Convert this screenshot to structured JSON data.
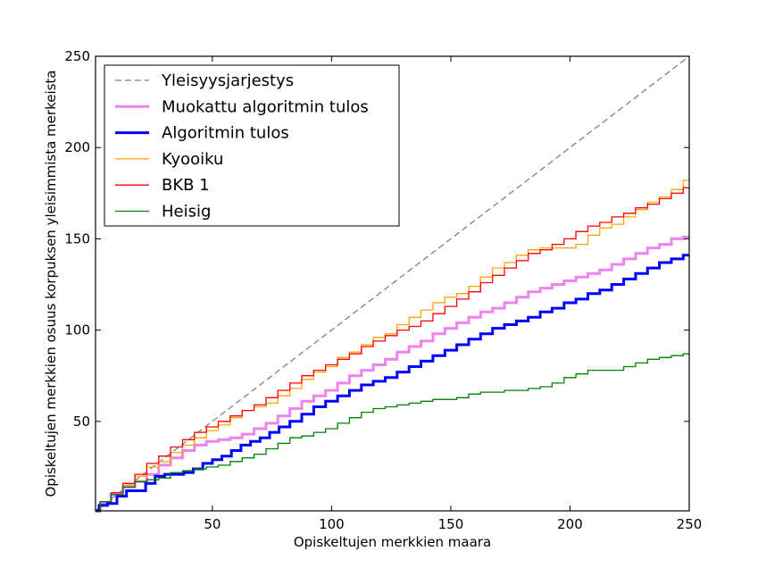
{
  "chart_data": {
    "type": "line",
    "title": "",
    "xlabel": "Opiskeltujen merkkien maara",
    "ylabel": "Opiskeltujen merkkien osuus korpuksen yleisimmista merkeista",
    "xlim": [
      1,
      250
    ],
    "ylim": [
      1,
      250
    ],
    "xticks": [
      50,
      100,
      150,
      200,
      250
    ],
    "yticks": [
      50,
      100,
      150,
      200,
      250
    ],
    "xtick_labels": [
      "50",
      "100",
      "150",
      "200",
      "250"
    ],
    "ytick_labels": [
      "50",
      "100",
      "150",
      "200",
      "250"
    ],
    "grid": false,
    "legend_position": "top-left",
    "series": [
      {
        "name": "Yleisyysjarjestys",
        "color": "#808080",
        "style": "dashed",
        "width": 1.3,
        "step": false,
        "x": [
          1,
          250
        ],
        "y": [
          1,
          250
        ]
      },
      {
        "name": "Muokattu algoritmin tulos",
        "color": "#ee82ee",
        "style": "solid",
        "width": 3,
        "step": true,
        "x": [
          1,
          5,
          10,
          15,
          20,
          25,
          30,
          35,
          40,
          45,
          50,
          55,
          60,
          65,
          70,
          75,
          80,
          85,
          90,
          95,
          100,
          105,
          110,
          115,
          120,
          125,
          130,
          135,
          140,
          145,
          150,
          155,
          160,
          165,
          170,
          175,
          180,
          185,
          190,
          195,
          200,
          205,
          210,
          215,
          220,
          225,
          230,
          235,
          240,
          245,
          250
        ],
        "y": [
          1,
          5,
          10,
          14,
          17,
          21,
          26,
          30,
          34,
          37,
          39,
          40,
          41,
          43,
          46,
          49,
          53,
          57,
          61,
          64,
          67,
          71,
          75,
          78,
          81,
          84,
          88,
          91,
          94,
          98,
          101,
          104,
          107,
          110,
          112,
          115,
          118,
          121,
          123,
          125,
          127,
          129,
          131,
          133,
          136,
          139,
          142,
          145,
          147,
          150,
          151
        ]
      },
      {
        "name": "Algoritmin tulos",
        "color": "#0000ff",
        "style": "solid",
        "width": 3,
        "step": true,
        "x": [
          1,
          4,
          8,
          12,
          16,
          20,
          24,
          28,
          32,
          36,
          40,
          44,
          48,
          52,
          56,
          60,
          64,
          68,
          72,
          76,
          80,
          85,
          90,
          95,
          100,
          105,
          110,
          115,
          120,
          125,
          130,
          135,
          140,
          145,
          150,
          155,
          160,
          165,
          170,
          175,
          180,
          185,
          190,
          195,
          200,
          205,
          210,
          215,
          220,
          225,
          230,
          235,
          240,
          245,
          250
        ],
        "y": [
          1,
          4,
          5,
          9,
          12,
          12,
          16,
          20,
          21,
          21,
          22,
          24,
          27,
          29,
          31,
          34,
          37,
          39,
          41,
          44,
          47,
          50,
          54,
          58,
          61,
          64,
          67,
          70,
          72,
          74,
          77,
          80,
          83,
          86,
          89,
          92,
          95,
          98,
          101,
          103,
          105,
          107,
          110,
          112,
          115,
          117,
          120,
          122,
          125,
          128,
          131,
          134,
          137,
          139,
          141
        ]
      },
      {
        "name": "Kyooiku",
        "color": "#ffa500",
        "style": "solid",
        "width": 1.3,
        "step": true,
        "x": [
          1,
          5,
          10,
          15,
          20,
          25,
          30,
          35,
          40,
          45,
          50,
          55,
          60,
          65,
          70,
          75,
          80,
          85,
          90,
          95,
          100,
          105,
          110,
          115,
          120,
          125,
          130,
          135,
          140,
          145,
          150,
          155,
          160,
          165,
          170,
          175,
          180,
          185,
          190,
          195,
          200,
          205,
          210,
          215,
          220,
          225,
          230,
          235,
          240,
          245,
          250
        ],
        "y": [
          1,
          6,
          10,
          15,
          20,
          25,
          28,
          33,
          37,
          41,
          45,
          48,
          52,
          56,
          58,
          60,
          64,
          68,
          73,
          77,
          80,
          85,
          88,
          92,
          96,
          98,
          103,
          107,
          111,
          115,
          118,
          120,
          124,
          129,
          134,
          137,
          141,
          144,
          145,
          145,
          145,
          147,
          152,
          156,
          158,
          162,
          166,
          170,
          173,
          177,
          182
        ]
      },
      {
        "name": "BKB 1",
        "color": "#ff0000",
        "style": "solid",
        "width": 1.3,
        "step": true,
        "x": [
          1,
          5,
          10,
          15,
          20,
          25,
          30,
          35,
          40,
          45,
          50,
          55,
          60,
          65,
          70,
          75,
          80,
          85,
          90,
          95,
          100,
          105,
          110,
          115,
          120,
          125,
          130,
          135,
          140,
          145,
          150,
          155,
          160,
          165,
          170,
          175,
          180,
          185,
          190,
          195,
          200,
          205,
          210,
          215,
          220,
          225,
          230,
          235,
          240,
          245,
          250
        ],
        "y": [
          1,
          6,
          11,
          16,
          21,
          27,
          31,
          36,
          40,
          44,
          47,
          50,
          53,
          56,
          59,
          63,
          67,
          71,
          75,
          78,
          81,
          84,
          87,
          91,
          94,
          97,
          100,
          102,
          105,
          109,
          113,
          117,
          121,
          126,
          130,
          134,
          138,
          142,
          144,
          147,
          150,
          154,
          157,
          159,
          162,
          164,
          167,
          169,
          172,
          175,
          178
        ]
      },
      {
        "name": "Heisig",
        "color": "#008000",
        "style": "solid",
        "width": 1.3,
        "step": true,
        "x": [
          1,
          5,
          10,
          15,
          20,
          25,
          30,
          35,
          40,
          45,
          50,
          55,
          60,
          65,
          70,
          75,
          80,
          85,
          90,
          95,
          100,
          105,
          110,
          115,
          120,
          125,
          130,
          135,
          140,
          145,
          150,
          155,
          160,
          165,
          170,
          175,
          180,
          185,
          190,
          195,
          200,
          205,
          210,
          215,
          220,
          225,
          230,
          235,
          240,
          245,
          250
        ],
        "y": [
          1,
          6,
          10,
          14,
          17,
          18,
          19,
          22,
          23,
          24,
          25,
          26,
          28,
          30,
          32,
          35,
          38,
          41,
          42,
          44,
          46,
          49,
          52,
          55,
          57,
          58,
          59,
          60,
          61,
          62,
          62,
          63,
          65,
          66,
          66,
          67,
          67,
          68,
          69,
          71,
          74,
          76,
          78,
          78,
          78,
          80,
          82,
          84,
          85,
          86,
          87
        ]
      }
    ]
  }
}
